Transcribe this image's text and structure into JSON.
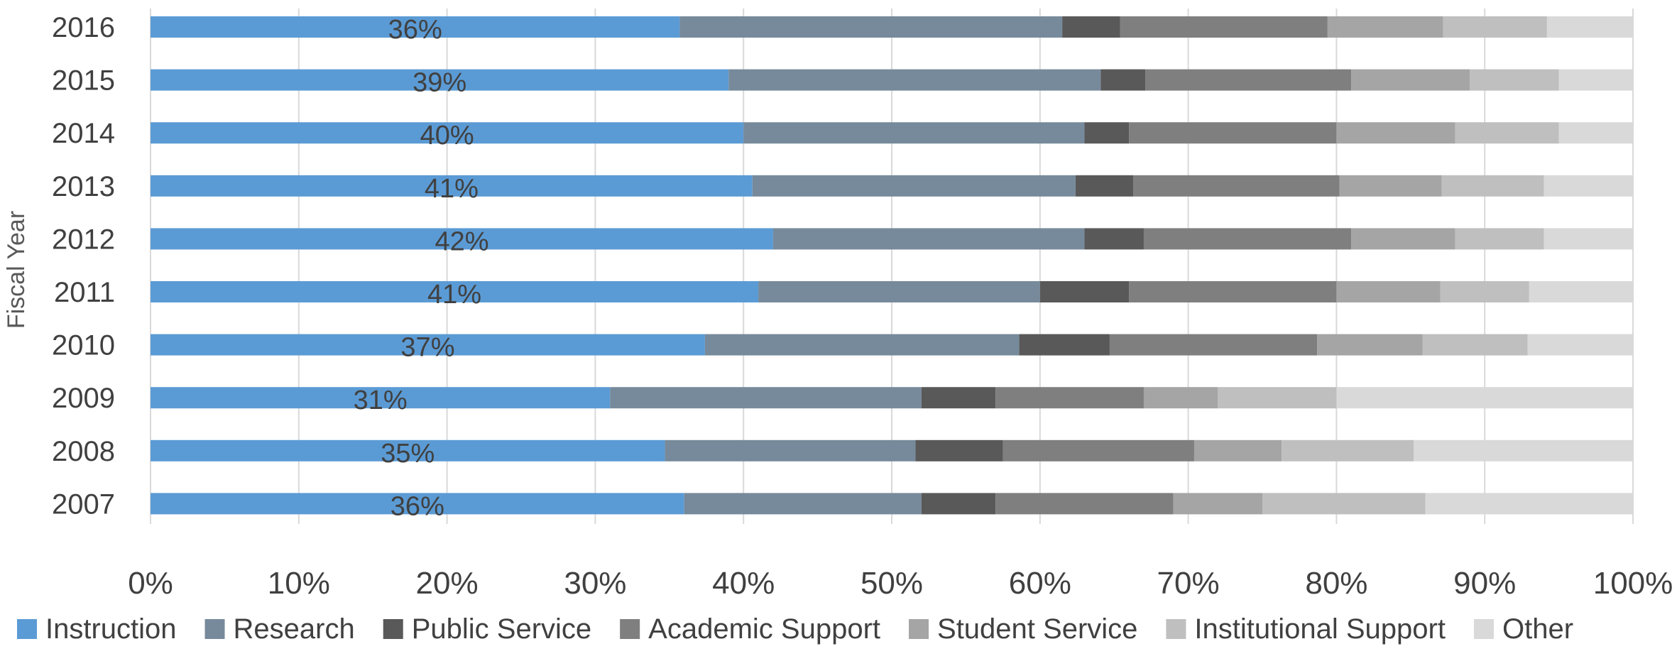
{
  "chart_data": {
    "type": "bar",
    "orientation": "horizontal",
    "stacked": "percent",
    "ylabel": "Fiscal Year",
    "xlabel": "",
    "xlim": [
      0,
      100
    ],
    "x_ticks": [
      "0%",
      "10%",
      "20%",
      "30%",
      "40%",
      "50%",
      "60%",
      "70%",
      "80%",
      "90%",
      "100%"
    ],
    "grid": "vertical",
    "legend_position": "bottom",
    "categories": [
      "2016",
      "2015",
      "2014",
      "2013",
      "2012",
      "2011",
      "2010",
      "2009",
      "2008",
      "2007"
    ],
    "series": [
      {
        "name": "Instruction",
        "color": "#5B9BD5",
        "values": [
          35.7,
          39.0,
          40.0,
          40.6,
          42.0,
          41.0,
          37.4,
          31.0,
          34.7,
          36.0
        ]
      },
      {
        "name": "Research",
        "color": "#778A9B",
        "values": [
          25.8,
          25.1,
          23.0,
          21.8,
          21.0,
          19.0,
          21.2,
          21.0,
          16.9,
          16.0
        ]
      },
      {
        "name": "Public Service",
        "color": "#595959",
        "values": [
          3.9,
          3.0,
          3.0,
          3.9,
          4.0,
          6.0,
          6.1,
          5.0,
          5.9,
          5.0
        ]
      },
      {
        "name": "Academic Support",
        "color": "#7F7F7F",
        "values": [
          14.0,
          13.9,
          14.0,
          13.9,
          14.0,
          14.0,
          14.0,
          10.0,
          12.9,
          12.0
        ]
      },
      {
        "name": "Student Service",
        "color": "#A5A5A5",
        "values": [
          7.8,
          8.0,
          8.0,
          6.9,
          7.0,
          7.0,
          7.1,
          5.0,
          5.9,
          6.0
        ]
      },
      {
        "name": "Institutional Support",
        "color": "#BFBFBF",
        "values": [
          7.0,
          6.0,
          7.0,
          6.9,
          6.0,
          6.0,
          7.1,
          8.0,
          8.9,
          11.0
        ]
      },
      {
        "name": "Other",
        "color": "#D9D9D9",
        "values": [
          5.8,
          5.0,
          5.0,
          6.0,
          6.0,
          7.0,
          7.1,
          20.0,
          14.8,
          14.0
        ]
      }
    ],
    "data_labels": [
      "36%",
      "39%",
      "40%",
      "41%",
      "42%",
      "41%",
      "37%",
      "31%",
      "35%",
      "36%"
    ]
  }
}
